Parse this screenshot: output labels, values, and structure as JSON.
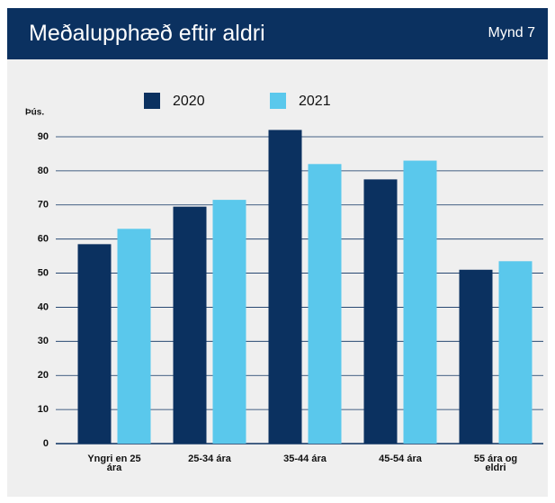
{
  "header": {
    "title": "Meðalupphæð eftir aldri",
    "figure": "Mynd 7"
  },
  "chart_data": {
    "type": "bar",
    "y_label": "Þús.",
    "categories": [
      "Yngri en 25 ára",
      "25-34 ára",
      "35-44 ára",
      "45-54 ára",
      "55 ára og eldri"
    ],
    "series": [
      {
        "name": "2020",
        "color": "#0b3160",
        "values": [
          58.5,
          69.5,
          92,
          77.5,
          51
        ]
      },
      {
        "name": "2021",
        "color": "#5ac8ec",
        "values": [
          63,
          71.5,
          82,
          83,
          53.5
        ]
      }
    ],
    "ylim": [
      0,
      90
    ],
    "yticks": [
      0,
      10,
      20,
      30,
      40,
      50,
      60,
      70,
      80,
      90
    ],
    "grid": true
  }
}
